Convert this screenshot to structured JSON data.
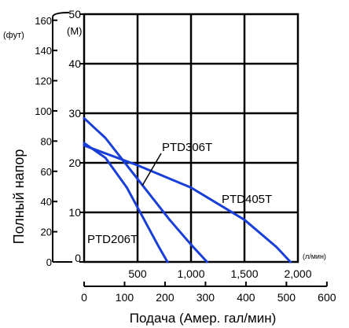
{
  "chart_data": {
    "type": "line",
    "ylabel": "Полный напор",
    "xlabel": "Подача (Амер. гал/мин)",
    "y_left_unit": "(фут)",
    "y_inner_unit": "(M)",
    "x_inner_unit": "(л/мин)",
    "xlim": [
      0,
      2000
    ],
    "ylim": [
      0,
      50
    ],
    "grid": true,
    "x_ticks": [
      {
        "value": 500,
        "label": "500"
      },
      {
        "value": 1000,
        "label": "1,000"
      },
      {
        "value": 1500,
        "label": "1,500"
      },
      {
        "value": 2000,
        "label": "2,000"
      }
    ],
    "y_ticks": [
      {
        "value": 0,
        "label": "0"
      },
      {
        "value": 10,
        "label": "10"
      },
      {
        "value": 20,
        "label": "20"
      },
      {
        "value": 30,
        "label": "30"
      },
      {
        "value": 40,
        "label": "40"
      },
      {
        "value": 50,
        "label": "50"
      }
    ],
    "y_left_ticks": [
      {
        "value": 0,
        "label": "0"
      },
      {
        "value": 20,
        "label": "20"
      },
      {
        "value": 40,
        "label": "40"
      },
      {
        "value": 60,
        "label": "60"
      },
      {
        "value": 80,
        "label": "80"
      },
      {
        "value": 100,
        "label": "100"
      },
      {
        "value": 120,
        "label": "120"
      },
      {
        "value": 140,
        "label": "140"
      },
      {
        "value": 160,
        "label": "160"
      }
    ],
    "x_bottom_ticks": [
      {
        "value": 0,
        "label": "0"
      },
      {
        "value": 100,
        "label": "100"
      },
      {
        "value": 200,
        "label": "200"
      },
      {
        "value": 300,
        "label": "300"
      },
      {
        "value": 400,
        "label": "400"
      },
      {
        "value": 500,
        "label": "500"
      },
      {
        "value": 600,
        "label": "600"
      }
    ],
    "series": [
      {
        "name": "PTD206T",
        "color": "#1a3fd8",
        "x": [
          0,
          200,
          400,
          600,
          700,
          780
        ],
        "y": [
          24,
          21,
          15,
          7,
          3,
          0
        ]
      },
      {
        "name": "PTD306T",
        "color": "#1a3fd8",
        "x": [
          0,
          200,
          400,
          600,
          800,
          1000,
          1150
        ],
        "y": [
          29,
          25,
          19.5,
          14,
          8.5,
          3.5,
          0
        ]
      },
      {
        "name": "PTD405T",
        "color": "#1a3fd8",
        "x": [
          0,
          500,
          1000,
          1500,
          1800,
          1930
        ],
        "y": [
          23.5,
          19.5,
          15,
          8.5,
          3,
          0
        ]
      }
    ],
    "annotations": [
      "PTD306T",
      "PTD405T",
      "PTD206T"
    ]
  }
}
